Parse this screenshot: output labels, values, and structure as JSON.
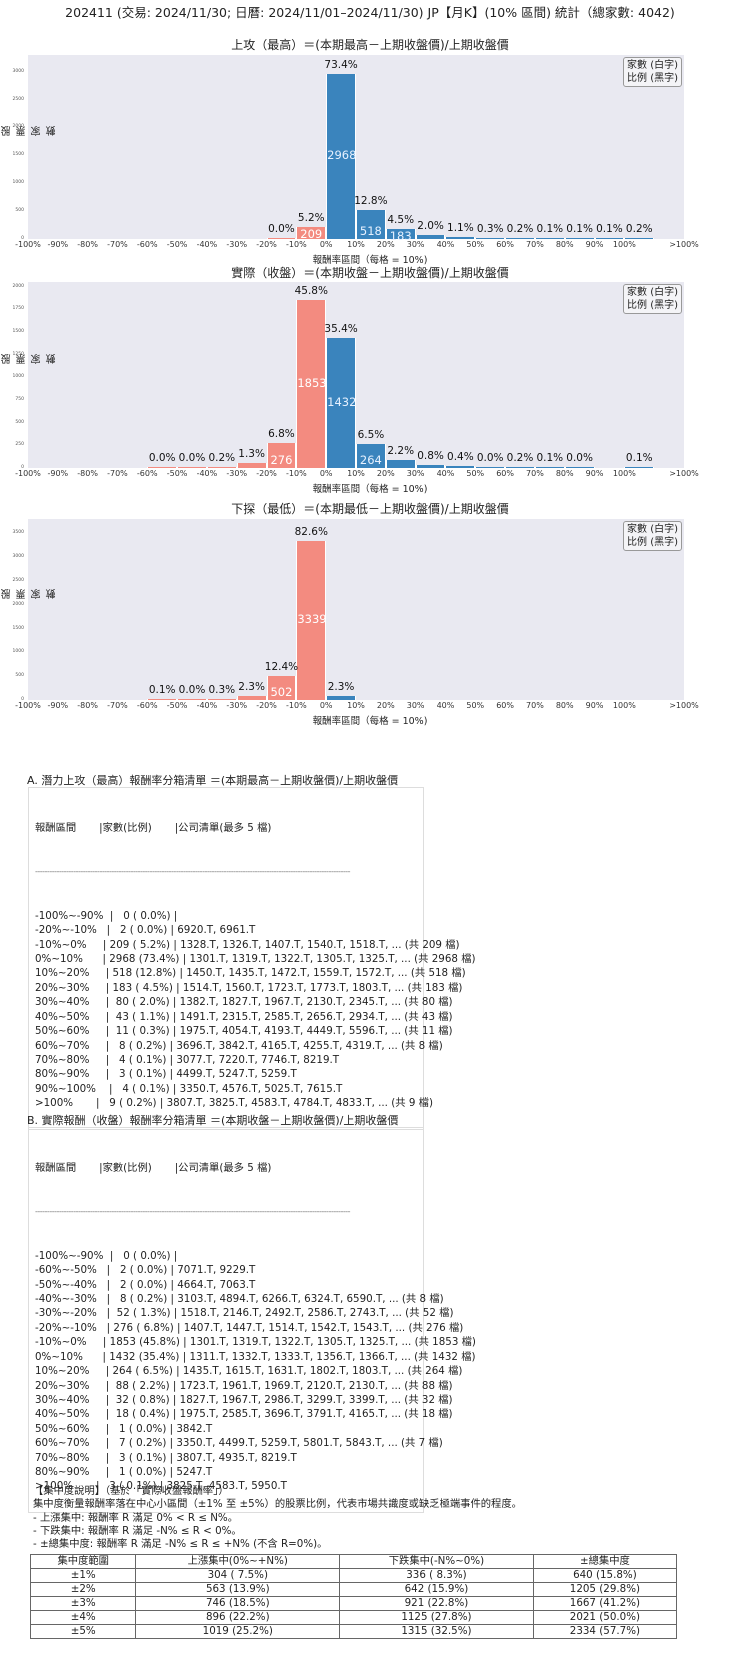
{
  "header": {
    "title": "202411 (交易: 2024/11/30; 日曆: 2024/11/01–2024/11/30) JP【月K】(10% 區間) 統計（總家數: 4042)"
  },
  "legend": {
    "line1": "家數 (白字)",
    "line2": "比例 (黑字)"
  },
  "axis": {
    "ylabel": "股票家數",
    "xlabel": "報酬率區間（每格 = 10%)",
    "xticks": [
      "-100%",
      "-90%",
      "-80%",
      "-70%",
      "-60%",
      "-50%",
      "-40%",
      "-30%",
      "-20%",
      "-10%",
      "0%",
      "10%",
      "20%",
      "30%",
      "40%",
      "50%",
      "60%",
      "70%",
      "80%",
      "90%",
      "100%",
      ">100%"
    ]
  },
  "colors": {
    "positive": "#3a84bd",
    "negative": "#f38b80",
    "plot_bg": "#e9e9f1"
  },
  "chart_data": [
    {
      "type": "bar",
      "title": "上攻（最高）＝(本期最高－上期收盤價)/上期收盤價",
      "xlabel": "報酬率區間（每格 = 10%)",
      "ylabel": "股票家數",
      "ylim": [
        0,
        3300
      ],
      "yticks": [
        0,
        500,
        1000,
        1500,
        2000,
        2500,
        3000
      ],
      "categories": [
        "-100%~-90%",
        "-20%~-10%",
        "-10%~0%",
        "0%~10%",
        "10%~20%",
        "20%~30%",
        "30%~40%",
        "40%~50%",
        "50%~60%",
        "60%~70%",
        "70%~80%",
        "80%~90%",
        "90%~100%",
        ">100%"
      ],
      "values": [
        0,
        2,
        209,
        2968,
        518,
        183,
        80,
        43,
        11,
        8,
        4,
        3,
        4,
        9
      ],
      "percent_labels": [
        "",
        "0.0%",
        "5.2%",
        "73.4%",
        "12.8%",
        "4.5%",
        "2.0%",
        "1.1%",
        "0.3%",
        "0.2%",
        "0.1%",
        "0.1%",
        "0.1%",
        "0.2%"
      ],
      "bin_index": [
        0,
        8,
        9,
        10,
        11,
        12,
        13,
        14,
        15,
        16,
        17,
        18,
        19,
        20
      ],
      "grid": false,
      "legend_position": "upper right"
    },
    {
      "type": "bar",
      "title": "實際（收盤）＝(本期收盤－上期收盤價)/上期收盤價",
      "xlabel": "報酬率區間（每格 = 10%)",
      "ylabel": "股票家數",
      "ylim": [
        0,
        2050
      ],
      "yticks": [
        0,
        250,
        500,
        750,
        1000,
        1250,
        1500,
        1750,
        2000
      ],
      "categories": [
        "-100%~-90%",
        "-60%~-50%",
        "-50%~-40%",
        "-40%~-30%",
        "-30%~-20%",
        "-20%~-10%",
        "-10%~0%",
        "0%~10%",
        "10%~20%",
        "20%~30%",
        "30%~40%",
        "40%~50%",
        "50%~60%",
        "60%~70%",
        "70%~80%",
        "80%~90%",
        ">100%"
      ],
      "values": [
        0,
        2,
        2,
        8,
        52,
        276,
        1853,
        1432,
        264,
        88,
        32,
        18,
        1,
        7,
        3,
        1,
        3
      ],
      "percent_labels": [
        "",
        "0.0%",
        "0.0%",
        "0.2%",
        "1.3%",
        "6.8%",
        "45.8%",
        "35.4%",
        "6.5%",
        "2.2%",
        "0.8%",
        "0.4%",
        "0.0%",
        "0.2%",
        "0.1%",
        "0.0%",
        "0.1%"
      ],
      "bin_index": [
        0,
        4,
        5,
        6,
        7,
        8,
        9,
        10,
        11,
        12,
        13,
        14,
        15,
        16,
        17,
        18,
        20
      ],
      "grid": false,
      "legend_position": "upper right"
    },
    {
      "type": "bar",
      "title": "下探（最低）＝(本期最低－上期收盤價)/上期收盤價",
      "xlabel": "報酬率區間（每格 = 10%)",
      "ylabel": "股票家數",
      "ylim": [
        0,
        3800
      ],
      "yticks": [
        0,
        500,
        1000,
        1500,
        2000,
        2500,
        3000,
        3500
      ],
      "categories": [
        "-60%~-50%",
        "-50%~-40%",
        "-40%~-30%",
        "-30%~-20%",
        "-20%~-10%",
        "-10%~0%",
        "0%~10%"
      ],
      "values": [
        3,
        1,
        13,
        93,
        502,
        3339,
        93
      ],
      "percent_labels": [
        "0.1%",
        "0.0%",
        "0.3%",
        "2.3%",
        "12.4%",
        "82.6%",
        "2.3%"
      ],
      "bin_index": [
        4,
        5,
        6,
        7,
        8,
        9,
        10
      ],
      "grid": false,
      "legend_position": "upper right"
    }
  ],
  "list_a": {
    "title": "A. 潛力上攻（最高）報酬率分箱清單 ＝(本期最高－上期收盤價)/上期收盤價",
    "header": "報酬區間       |家數(比例)       |公司清單(最多 5 檔)",
    "separator": "------------------------------------------------------------------------------------------------------------------------------------",
    "rows": [
      "-100%~-90%  |   0 ( 0.0%) |",
      "-20%~-10%   |   2 ( 0.0%) | 6920.T, 6961.T",
      "-10%~0%     | 209 ( 5.2%) | 1328.T, 1326.T, 1407.T, 1540.T, 1518.T, ... (共 209 檔)",
      "0%~10%      | 2968 (73.4%) | 1301.T, 1319.T, 1322.T, 1305.T, 1325.T, ... (共 2968 檔)",
      "10%~20%     | 518 (12.8%) | 1450.T, 1435.T, 1472.T, 1559.T, 1572.T, ... (共 518 檔)",
      "20%~30%     | 183 ( 4.5%) | 1514.T, 1560.T, 1723.T, 1773.T, 1803.T, ... (共 183 檔)",
      "30%~40%     |  80 ( 2.0%) | 1382.T, 1827.T, 1967.T, 2130.T, 2345.T, ... (共 80 檔)",
      "40%~50%     |  43 ( 1.1%) | 1491.T, 2315.T, 2585.T, 2656.T, 2934.T, ... (共 43 檔)",
      "50%~60%     |  11 ( 0.3%) | 1975.T, 4054.T, 4193.T, 4449.T, 5596.T, ... (共 11 檔)",
      "60%~70%     |   8 ( 0.2%) | 3696.T, 3842.T, 4165.T, 4255.T, 4319.T, ... (共 8 檔)",
      "70%~80%     |   4 ( 0.1%) | 3077.T, 7220.T, 7746.T, 8219.T",
      "80%~90%     |   3 ( 0.1%) | 4499.T, 5247.T, 5259.T",
      "90%~100%    |   4 ( 0.1%) | 3350.T, 4576.T, 5025.T, 7615.T",
      ">100%       |   9 ( 0.2%) | 3807.T, 3825.T, 4583.T, 4784.T, 4833.T, ... (共 9 檔)"
    ]
  },
  "list_b": {
    "title": "B. 實際報酬（收盤）報酬率分箱清單 ＝(本期收盤－上期收盤價)/上期收盤價",
    "header": "報酬區間       |家數(比例)       |公司清單(最多 5 檔)",
    "separator": "------------------------------------------------------------------------------------------------------------------------------------",
    "rows": [
      "-100%~-90%  |   0 ( 0.0%) |",
      "-60%~-50%   |   2 ( 0.0%) | 7071.T, 9229.T",
      "-50%~-40%   |   2 ( 0.0%) | 4664.T, 7063.T",
      "-40%~-30%   |   8 ( 0.2%) | 3103.T, 4894.T, 6266.T, 6324.T, 6590.T, ... (共 8 檔)",
      "-30%~-20%   |  52 ( 1.3%) | 1518.T, 2146.T, 2492.T, 2586.T, 2743.T, ... (共 52 檔)",
      "-20%~-10%   | 276 ( 6.8%) | 1407.T, 1447.T, 1514.T, 1542.T, 1543.T, ... (共 276 檔)",
      "-10%~0%     | 1853 (45.8%) | 1301.T, 1319.T, 1322.T, 1305.T, 1325.T, ... (共 1853 檔)",
      "0%~10%      | 1432 (35.4%) | 1311.T, 1332.T, 1333.T, 1356.T, 1366.T, ... (共 1432 檔)",
      "10%~20%     | 264 ( 6.5%) | 1435.T, 1615.T, 1631.T, 1802.T, 1803.T, ... (共 264 檔)",
      "20%~30%     |  88 ( 2.2%) | 1723.T, 1961.T, 1969.T, 2120.T, 2130.T, ... (共 88 檔)",
      "30%~40%     |  32 ( 0.8%) | 1827.T, 1967.T, 2986.T, 3299.T, 3399.T, ... (共 32 檔)",
      "40%~50%     |  18 ( 0.4%) | 1975.T, 2585.T, 3696.T, 3791.T, 4165.T, ... (共 18 檔)",
      "50%~60%     |   1 ( 0.0%) | 3842.T",
      "60%~70%     |   7 ( 0.2%) | 3350.T, 4499.T, 5259.T, 5801.T, 5843.T, ... (共 7 檔)",
      "70%~80%     |   3 ( 0.1%) | 3807.T, 4935.T, 8219.T",
      "80%~90%     |   1 ( 0.0%) | 5247.T",
      ">100%       |   3 ( 0.1%) | 3825.T, 4583.T, 5950.T"
    ]
  },
  "concentration": {
    "title": "【集中度說明】（基於「實際收盤報酬率」）",
    "desc": "集中度衡量報酬率落在中心小區間（±1% 至 ±5%）的股票比例，代表市場共識度或缺乏極端事件的程度。",
    "rule_up": "- 上漲集中: 報酬率 R 滿足 0% < R ≤ N%。",
    "rule_down": "- 下跌集中: 報酬率 R 滿足 -N% ≤ R < 0%。",
    "rule_total": "- ±總集中度: 報酬率 R 滿足 -N% ≤ R ≤ +N% (不含 R=0%)。",
    "columns": [
      "集中度範圍",
      "上漲集中(0%~+N%)",
      "下跌集中(-N%~0%)",
      "±總集中度"
    ],
    "rows": [
      [
        "±1%",
        "304 ( 7.5%)",
        "336 ( 8.3%)",
        "640 (15.8%)"
      ],
      [
        "±2%",
        "563 (13.9%)",
        "642 (15.9%)",
        "1205 (29.8%)"
      ],
      [
        "±3%",
        "746 (18.5%)",
        "921 (22.8%)",
        "1667 (41.2%)"
      ],
      [
        "±4%",
        "896 (22.2%)",
        "1125 (27.8%)",
        "2021 (50.0%)"
      ],
      [
        "±5%",
        "1019 (25.2%)",
        "1315 (32.5%)",
        "2334 (57.7%)"
      ]
    ]
  }
}
